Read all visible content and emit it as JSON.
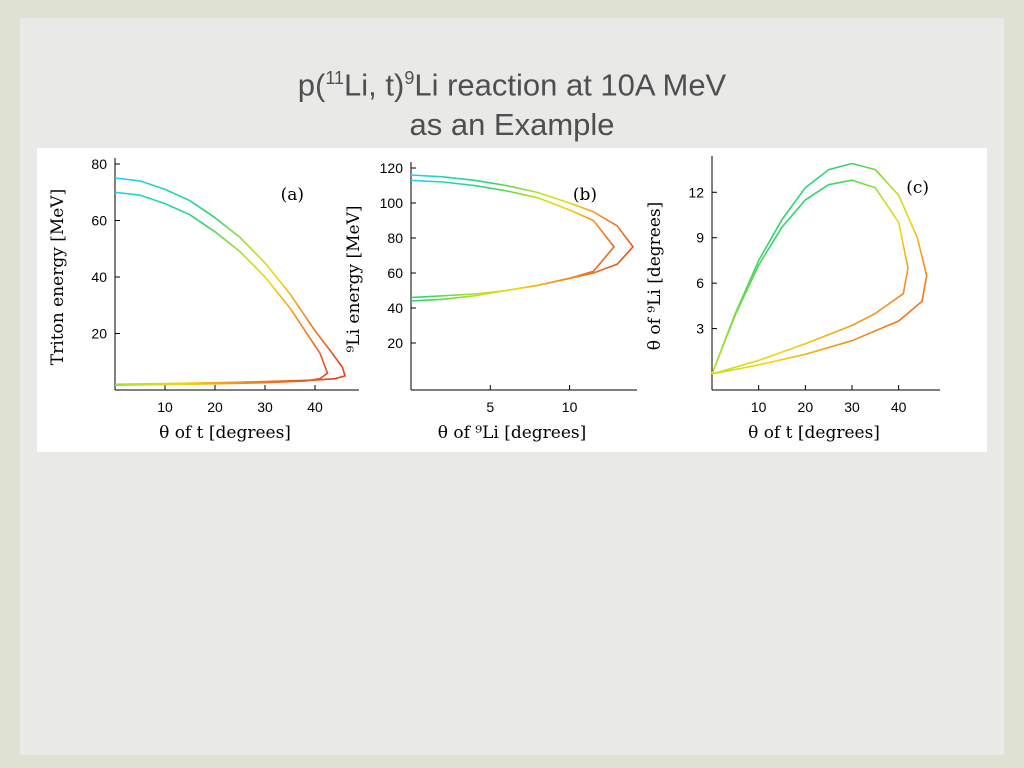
{
  "title": {
    "pre": "p(",
    "sup1": "11",
    "mid": "Li, t)",
    "sup2": "9",
    "post": "Li reaction at 10A MeV",
    "line2": "as an Example"
  },
  "chart_data": [
    {
      "type": "line",
      "panel_label": "(a)",
      "xlabel": "θ of t [degrees]",
      "ylabel": "Triton energy [MeV]",
      "xlim": [
        0,
        48
      ],
      "ylim": [
        0,
        80
      ],
      "xticks": [
        10,
        20,
        30,
        40
      ],
      "yticks": [
        20,
        40,
        60,
        80
      ],
      "series": [
        {
          "x": [
            0,
            5,
            10,
            15,
            20,
            25,
            30,
            35,
            40,
            43,
            45.5,
            46,
            44,
            40,
            30,
            20,
            10,
            0
          ],
          "y": [
            75,
            74,
            71,
            67,
            61,
            54,
            45,
            34,
            21,
            14,
            8,
            5,
            4,
            3.5,
            3,
            2.6,
            2.3,
            2
          ]
        },
        {
          "x": [
            0,
            5,
            10,
            15,
            20,
            25,
            30,
            35,
            38,
            41,
            42.5,
            41,
            38,
            30,
            20,
            10,
            0
          ],
          "y": [
            70,
            69,
            66,
            62,
            56,
            49,
            40,
            29,
            21,
            13,
            6,
            4,
            3.2,
            2.6,
            2.2,
            1.9,
            1.7
          ]
        }
      ]
    },
    {
      "type": "line",
      "panel_label": "(b)",
      "xlabel": "θ of ⁹Li [degrees]",
      "ylabel": "⁹Li energy [MeV]",
      "xlim": [
        0,
        14
      ],
      "ylim": [
        0,
        120
      ],
      "xticks": [
        5,
        10
      ],
      "yticks": [
        20,
        40,
        60,
        80,
        100,
        120
      ],
      "series": [
        {
          "x": [
            0,
            2,
            4,
            6,
            8,
            10,
            11.5,
            13,
            14,
            13,
            11.5,
            10,
            8,
            6,
            4,
            2,
            0
          ],
          "y": [
            116,
            115,
            113,
            110,
            106,
            100,
            95,
            87,
            75,
            65,
            60,
            57,
            53,
            50,
            48,
            47,
            46
          ]
        },
        {
          "x": [
            0,
            2,
            4,
            6,
            8,
            10,
            11.5,
            12.8,
            11.5,
            10,
            8,
            6,
            4,
            2,
            0
          ],
          "y": [
            113,
            112,
            110,
            107,
            103,
            96,
            90,
            75,
            61,
            57,
            53,
            50,
            47,
            45,
            44
          ]
        }
      ]
    },
    {
      "type": "line",
      "panel_label": "(c)",
      "xlabel": "θ of t [degrees]",
      "ylabel": "θ of ⁹Li [degrees]",
      "xlim": [
        0,
        48
      ],
      "ylim": [
        0,
        14
      ],
      "xticks": [
        10,
        20,
        30,
        40
      ],
      "yticks": [
        3,
        6,
        9,
        12
      ],
      "series": [
        {
          "x": [
            0,
            5,
            10,
            15,
            20,
            25,
            30,
            35,
            40,
            44,
            46,
            45,
            40,
            30,
            20,
            10,
            0
          ],
          "y": [
            0,
            4,
            7.5,
            10.2,
            12.3,
            13.5,
            13.9,
            13.5,
            11.8,
            9,
            6.5,
            4.8,
            3.5,
            2.2,
            1.3,
            0.6,
            0
          ]
        },
        {
          "x": [
            0,
            5,
            10,
            15,
            20,
            25,
            30,
            35,
            40,
            42,
            41,
            35,
            30,
            20,
            10,
            0
          ],
          "y": [
            0,
            3.9,
            7.2,
            9.7,
            11.5,
            12.5,
            12.8,
            12.3,
            10,
            7,
            5.3,
            4,
            3.2,
            2,
            0.9,
            0
          ]
        }
      ]
    }
  ]
}
